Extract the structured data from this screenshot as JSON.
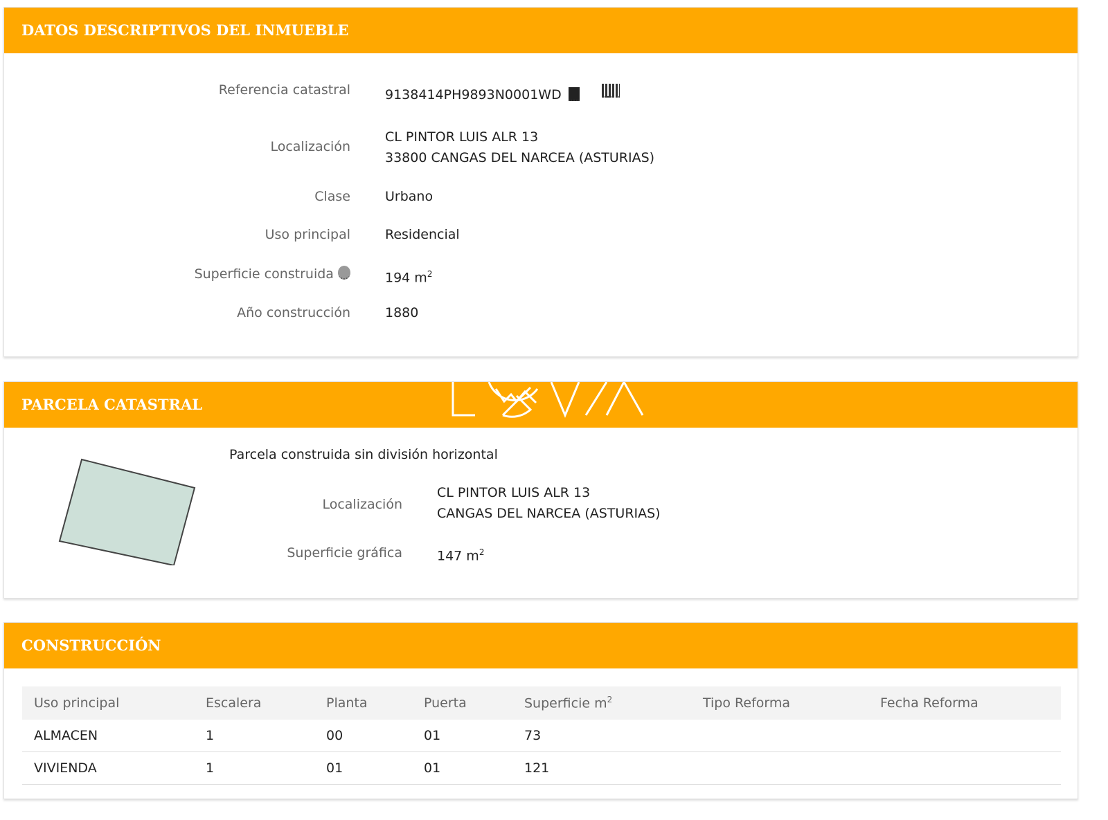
{
  "datos": {
    "title": "DATOS DESCRIPTIVOS DEL INMUEBLE",
    "ref_label": "Referencia catastral",
    "ref_value": "9138414PH9893N0001WD",
    "loc_label": "Localización",
    "loc_line1": "CL PINTOR LUIS ALR 13",
    "loc_line2": "33800 CANGAS DEL NARCEA (ASTURIAS)",
    "clase_label": "Clase",
    "clase_value": "Urbano",
    "uso_label": "Uso principal",
    "uso_value": "Residencial",
    "sup_label": "Superficie construida",
    "sup_value": "194 m",
    "sup_unit_exp": "2",
    "anio_label": "Año construcción",
    "anio_value": "1880"
  },
  "parcela": {
    "title": "PARCELA CATASTRAL",
    "watermark": "LOVIA",
    "subtitle": "Parcela construida sin división horizontal",
    "loc_label": "Localización",
    "loc_line1": "CL PINTOR LUIS ALR 13",
    "loc_line2": "CANGAS DEL NARCEA (ASTURIAS)",
    "sup_label": "Superficie gráfica",
    "sup_value": "147 m",
    "sup_unit_exp": "2",
    "parcel_fill": "#cde0d8"
  },
  "construccion": {
    "title": "CONSTRUCCIÓN",
    "headers": [
      "Uso principal",
      "Escalera",
      "Planta",
      "Puerta",
      "Superficie m",
      "Tipo Reforma",
      "Fecha Reforma"
    ],
    "sup_exp": "2",
    "rows": [
      [
        "ALMACEN",
        "1",
        "00",
        "01",
        "73",
        "",
        ""
      ],
      [
        "VIVIENDA",
        "1",
        "01",
        "01",
        "121",
        "",
        ""
      ]
    ]
  },
  "colors": {
    "accent": "#FFA800"
  }
}
